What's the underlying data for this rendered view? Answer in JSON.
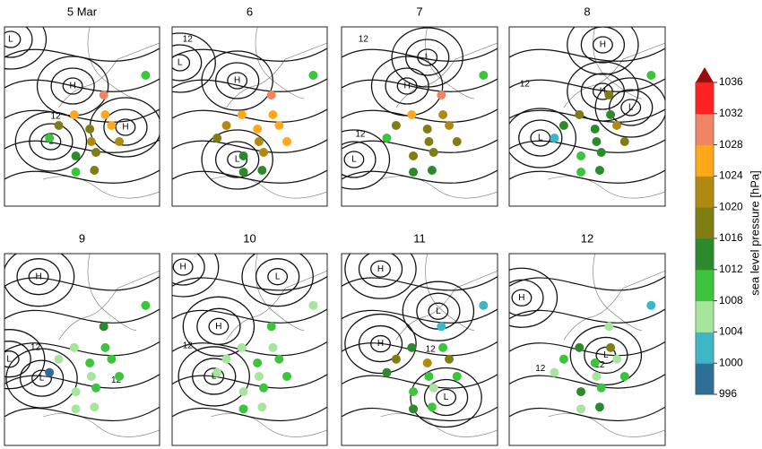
{
  "panels": [
    {
      "title": "5 Mar",
      "labels": [
        "H",
        "L",
        "H",
        "L",
        "12"
      ],
      "stations": [
        1010,
        1030,
        1026,
        1026,
        1018,
        1018,
        1026,
        1010,
        1022,
        1022,
        1014,
        1018,
        1018,
        1010
      ]
    },
    {
      "title": "6",
      "labels": [
        "H",
        "L",
        "12",
        "L"
      ],
      "stations": [
        1010,
        1030,
        1026,
        1026,
        1022,
        1026,
        1026,
        1018,
        1022,
        1026,
        1014,
        1022,
        1014,
        1014
      ]
    },
    {
      "title": "7",
      "labels": [
        "H",
        "L",
        "12",
        "12",
        "L"
      ],
      "stations": [
        1010,
        1030,
        1026,
        1022,
        1018,
        1018,
        1022,
        1010,
        1018,
        1018,
        1018,
        1018,
        1014,
        1014
      ]
    },
    {
      "title": "8",
      "labels": [
        "H",
        "L",
        "H",
        "12",
        "L"
      ],
      "stations": [
        1010,
        1018,
        1018,
        1014,
        1014,
        1014,
        1022,
        1002,
        1014,
        1018,
        1010,
        1014,
        1014,
        1010
      ]
    },
    {
      "title": "9",
      "labels": [
        "H",
        "L",
        "L",
        "12",
        "12"
      ],
      "stations": [
        1010,
        1014,
        1006,
        1010,
        1006,
        1010,
        1010,
        998,
        1006,
        1010,
        1006,
        1010,
        1006,
        1006
      ]
    },
    {
      "title": "10",
      "labels": [
        "H",
        "H",
        "L",
        "L",
        "12"
      ],
      "stations": [
        1006,
        1010,
        1006,
        1006,
        1006,
        1010,
        1010,
        1006,
        1006,
        1010,
        1006,
        1010,
        1006,
        1010
      ]
    },
    {
      "title": "11",
      "labels": [
        "H",
        "H",
        "L",
        "L",
        "12"
      ],
      "stations": [
        1002,
        1002,
        1014,
        1010,
        1018,
        1022,
        1018,
        1014,
        1010,
        1010,
        1010,
        1006,
        1010,
        1014
      ]
    },
    {
      "title": "12",
      "labels": [
        "H",
        "L",
        "12",
        "12"
      ],
      "stations": [
        1002,
        1006,
        1014,
        1018,
        1010,
        1010,
        1006,
        1006,
        1006,
        1010,
        1014,
        1010,
        1014,
        1006
      ]
    }
  ],
  "colorbar": {
    "label": "sea level pressure [hPa]",
    "lim": [
      996,
      1036
    ],
    "ticks": [
      996,
      1000,
      1004,
      1008,
      1012,
      1016,
      1020,
      1024,
      1028,
      1032,
      1036
    ],
    "colors": [
      "#2f6e95",
      "#3fb6c6",
      "#a6e59c",
      "#3cc43c",
      "#2c8a2c",
      "#7e7e12",
      "#b08a10",
      "#ffa81a",
      "#f08566",
      "#ff2222",
      "#9a0b0b"
    ]
  }
}
